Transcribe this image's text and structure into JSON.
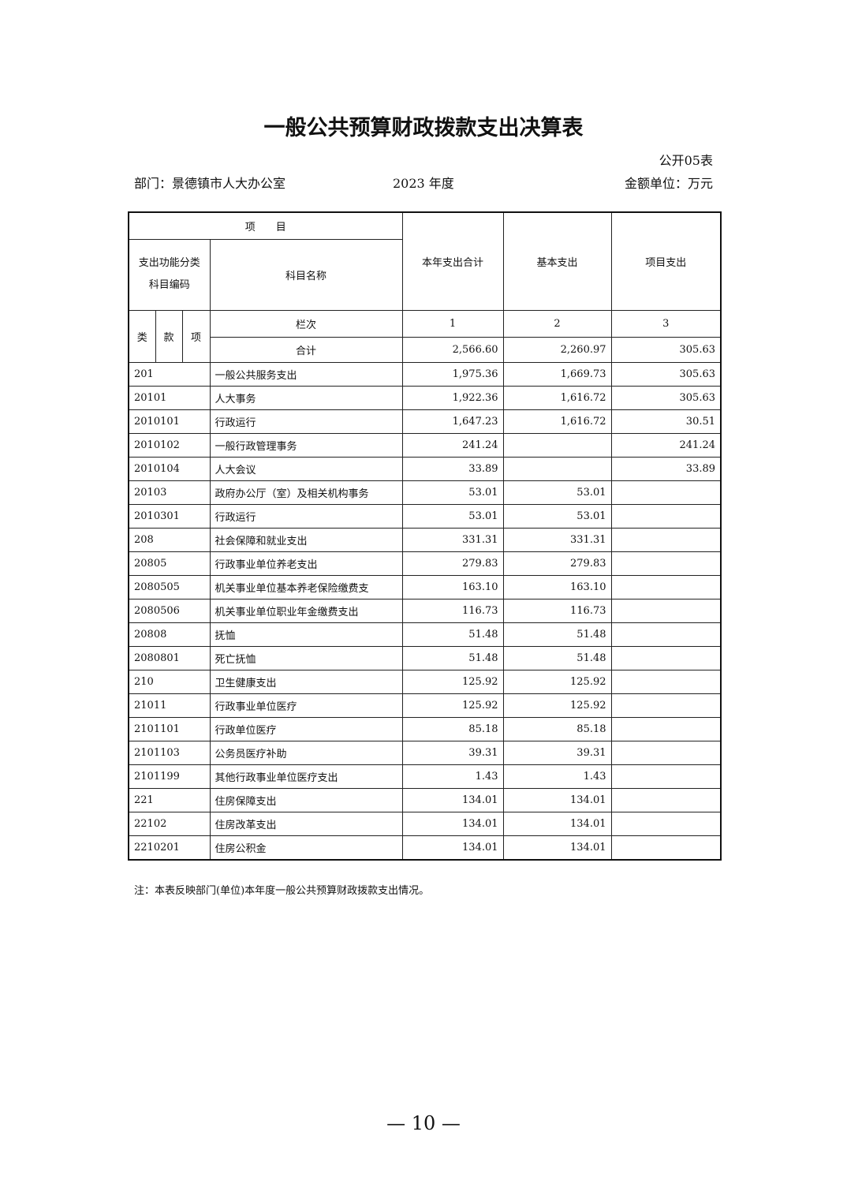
{
  "title": "一般公共预算财政拨款支出决算表",
  "table_no": "公开05表",
  "department": "部门：景德镇市人大办公室",
  "year": "2023 年度",
  "unit": "金额单位：万元",
  "header": {
    "item": "项　　目",
    "code_group": "支出功能分类科目编码",
    "name": "科目名称",
    "col1": "本年支出合计",
    "col2": "基本支出",
    "col3": "项目支出",
    "lei": "类",
    "kuan": "款",
    "xiang": "项",
    "lanci": "栏次",
    "n1": "1",
    "n2": "2",
    "n3": "3",
    "total_label": "合计",
    "total1": "2,566.60",
    "total2": "2,260.97",
    "total3": "305.63"
  },
  "rows": [
    {
      "code": "201",
      "name": "一般公共服务支出",
      "total": "1,975.36",
      "basic": "1,669.73",
      "project": "305.63"
    },
    {
      "code": "20101",
      "name": "人大事务",
      "total": "1,922.36",
      "basic": "1,616.72",
      "project": "305.63"
    },
    {
      "code": "2010101",
      "name": "行政运行",
      "total": "1,647.23",
      "basic": "1,616.72",
      "project": "30.51"
    },
    {
      "code": "2010102",
      "name": "一般行政管理事务",
      "total": "241.24",
      "basic": "",
      "project": "241.24"
    },
    {
      "code": "2010104",
      "name": "人大会议",
      "total": "33.89",
      "basic": "",
      "project": "33.89"
    },
    {
      "code": "20103",
      "name": "政府办公厅（室）及相关机构事务",
      "total": "53.01",
      "basic": "53.01",
      "project": ""
    },
    {
      "code": "2010301",
      "name": "行政运行",
      "total": "53.01",
      "basic": "53.01",
      "project": ""
    },
    {
      "code": "208",
      "name": "社会保障和就业支出",
      "total": "331.31",
      "basic": "331.31",
      "project": ""
    },
    {
      "code": "20805",
      "name": "行政事业单位养老支出",
      "total": "279.83",
      "basic": "279.83",
      "project": ""
    },
    {
      "code": "2080505",
      "name": "机关事业单位基本养老保险缴费支",
      "total": "163.10",
      "basic": "163.10",
      "project": ""
    },
    {
      "code": "2080506",
      "name": "机关事业单位职业年金缴费支出",
      "total": "116.73",
      "basic": "116.73",
      "project": ""
    },
    {
      "code": "20808",
      "name": "抚恤",
      "total": "51.48",
      "basic": "51.48",
      "project": ""
    },
    {
      "code": "2080801",
      "name": "死亡抚恤",
      "total": "51.48",
      "basic": "51.48",
      "project": ""
    },
    {
      "code": "210",
      "name": "卫生健康支出",
      "total": "125.92",
      "basic": "125.92",
      "project": ""
    },
    {
      "code": "21011",
      "name": "行政事业单位医疗",
      "total": "125.92",
      "basic": "125.92",
      "project": ""
    },
    {
      "code": "2101101",
      "name": "行政单位医疗",
      "total": "85.18",
      "basic": "85.18",
      "project": ""
    },
    {
      "code": "2101103",
      "name": "公务员医疗补助",
      "total": "39.31",
      "basic": "39.31",
      "project": ""
    },
    {
      "code": "2101199",
      "name": "其他行政事业单位医疗支出",
      "total": "1.43",
      "basic": "1.43",
      "project": ""
    },
    {
      "code": "221",
      "name": "住房保障支出",
      "total": "134.01",
      "basic": "134.01",
      "project": ""
    },
    {
      "code": "22102",
      "name": "住房改革支出",
      "total": "134.01",
      "basic": "134.01",
      "project": ""
    },
    {
      "code": "2210201",
      "name": "住房公积金",
      "total": "134.01",
      "basic": "134.01",
      "project": ""
    }
  ],
  "note": "注：本表反映部门(单位)本年度一般公共预算财政拨款支出情况。",
  "page_number": "— 10 —"
}
